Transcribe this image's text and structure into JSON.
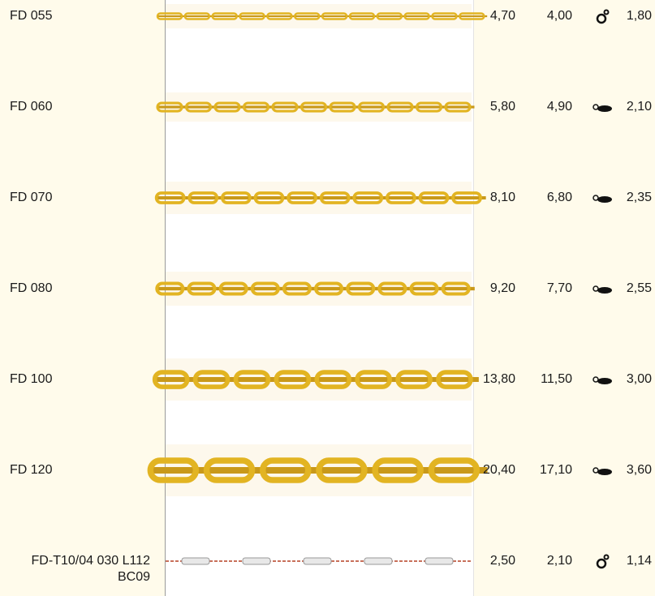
{
  "rows": [
    [
      "FD 055",
      "4,70",
      "4,00",
      "1,80"
    ],
    [
      "FD 060",
      "5,80",
      "4,90",
      "2,10"
    ],
    [
      "FD 070",
      "8,10",
      "6,80",
      "2,35"
    ],
    [
      "FD 080",
      "9,20",
      "7,70",
      "2,55"
    ],
    [
      "FD 100",
      "13,80",
      "11,50",
      "3,00"
    ],
    [
      "FD 120",
      "20,40",
      "17,10",
      "3,60"
    ],
    [
      "FD-T10/04 030 L112 BC09",
      "2,50",
      "2,10",
      "1,14"
    ]
  ]
}
